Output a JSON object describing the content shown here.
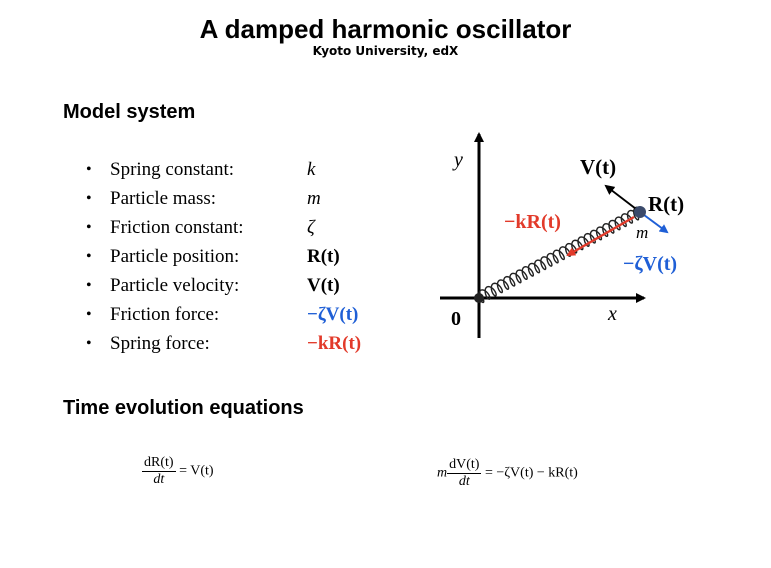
{
  "header": {
    "title": "A damped harmonic oscillator",
    "subtitle": "Kyoto University, edX"
  },
  "model": {
    "heading": "Model system",
    "items": [
      {
        "label": "Spring constant:",
        "symbol": "k"
      },
      {
        "label": "Particle mass:",
        "symbol": "m"
      },
      {
        "label": "Friction constant:",
        "symbol": "ζ"
      },
      {
        "label": "Particle position:",
        "symbol": "R(t)"
      },
      {
        "label": "Particle velocity:",
        "symbol": "V(t)"
      },
      {
        "label": "Friction force:",
        "symbol": "−ζV(t)",
        "color": "#1f5fd6"
      },
      {
        "label": "Spring force:",
        "symbol": "−kR(t)",
        "color": "#e23a2a"
      }
    ],
    "bullet": "•"
  },
  "diagram": {
    "y_label": "y",
    "x_label": "x",
    "origin_label": "0",
    "velocity_label": "V(t)",
    "position_label": "R(t)",
    "mass_label": "m",
    "spring_force_label": "−kR(t)",
    "friction_label": "−ζV(t)",
    "colors": {
      "red": "#e23a2a",
      "blue": "#1f5fd6",
      "axis": "#000000",
      "particle": "#3b4a6b"
    }
  },
  "equations": {
    "heading": "Time evolution equations",
    "eq1": {
      "numerator": "dR(t)",
      "denominator": "dt",
      "rhs": "= V(t)"
    },
    "eq2": {
      "prefix": "m",
      "numerator": "dV(t)",
      "denominator": "dt",
      "rhs": "= −ζV(t) − kR(t)"
    }
  }
}
